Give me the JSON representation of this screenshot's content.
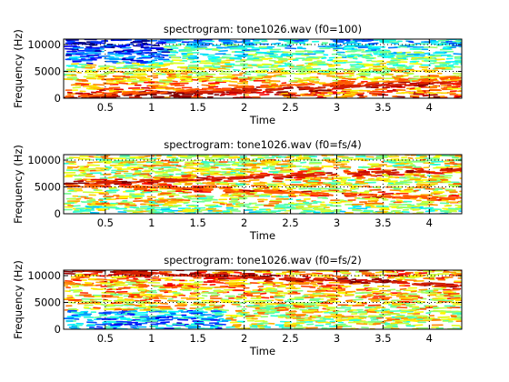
{
  "chart_data": [
    {
      "type": "heatmap",
      "title": "spectrogram: tone1026.wav (f0=100)",
      "xlabel": "Time",
      "ylabel": "Frequency (Hz)",
      "xlim": [
        0.05,
        4.35
      ],
      "ylim": [
        0,
        11025
      ],
      "xticks": [
        0.5,
        1,
        1.5,
        2,
        2.5,
        3,
        3.5,
        4
      ],
      "xtick_labels": [
        "0.5",
        "1",
        "1.5",
        "2",
        "2.5",
        "3",
        "3.5",
        "4"
      ],
      "yticks": [
        0,
        5000,
        10000
      ],
      "ytick_labels": [
        "0",
        "5000",
        "10000"
      ],
      "grid": true,
      "colormap": "jet",
      "tone_track": {
        "start_hz": 100,
        "end_hz": 3000,
        "harmonic_hz_start": 300
      }
    },
    {
      "type": "heatmap",
      "title": "spectrogram: tone1026.wav (f0=fs/4)",
      "xlabel": "Time",
      "ylabel": "Frequency (Hz)",
      "xlim": [
        0.05,
        4.35
      ],
      "ylim": [
        0,
        11025
      ],
      "xticks": [
        0.5,
        1,
        1.5,
        2,
        2.5,
        3,
        3.5,
        4
      ],
      "xtick_labels": [
        "0.5",
        "1",
        "1.5",
        "2",
        "2.5",
        "3",
        "3.5",
        "4"
      ],
      "yticks": [
        0,
        5000,
        10000
      ],
      "ytick_labels": [
        "0",
        "5000",
        "10000"
      ],
      "grid": true,
      "colormap": "jet",
      "tone_track": {
        "start_hz": 5512,
        "end_hz": 8200,
        "mirror_end_hz": 2800
      }
    },
    {
      "type": "heatmap",
      "title": "spectrogram: tone1026.wav (f0=fs/2)",
      "xlabel": "Time",
      "ylabel": "Frequency (Hz)",
      "xlim": [
        0.05,
        4.35
      ],
      "ylim": [
        0,
        11025
      ],
      "xticks": [
        0.5,
        1,
        1.5,
        2,
        2.5,
        3,
        3.5,
        4
      ],
      "xtick_labels": [
        "0.5",
        "1",
        "1.5",
        "2",
        "2.5",
        "3",
        "3.5",
        "4"
      ],
      "yticks": [
        0,
        5000,
        10000
      ],
      "ytick_labels": [
        "0",
        "5000",
        "10000"
      ],
      "grid": true,
      "colormap": "jet",
      "tone_track": {
        "start_hz": 11025,
        "end_hz": 8200
      }
    }
  ]
}
